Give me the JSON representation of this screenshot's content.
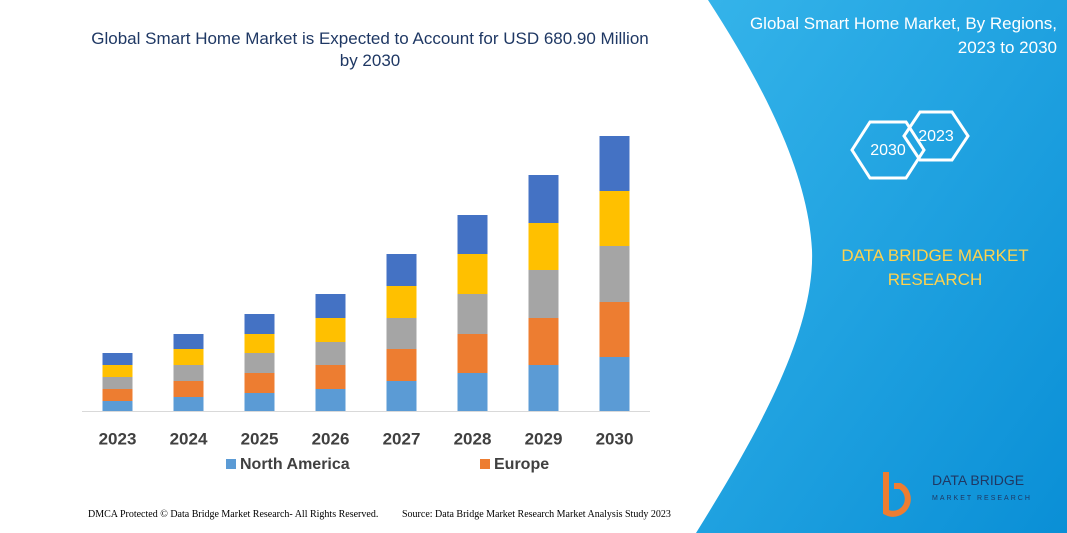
{
  "chart_data": {
    "type": "bar",
    "stacked": true,
    "title": "Global Smart Home Market is Expected to Account for USD 680.90 Million by 2030",
    "categories": [
      "2023",
      "2024",
      "2025",
      "2026",
      "2027",
      "2028",
      "2029",
      "2030"
    ],
    "series": [
      {
        "name": "North America",
        "color": "#5b9bd5",
        "values": [
          10,
          14,
          18,
          22,
          30,
          38,
          46,
          54
        ]
      },
      {
        "name": "Europe",
        "color": "#ed7d31",
        "values": [
          12,
          16,
          20,
          24,
          32,
          39,
          47,
          55
        ]
      },
      {
        "name": null,
        "color": "#a5a5a5",
        "values": [
          12,
          16,
          20,
          23,
          31,
          40,
          48,
          56
        ]
      },
      {
        "name": null,
        "color": "#ffc000",
        "values": [
          12,
          16,
          19,
          24,
          32,
          40,
          47,
          55
        ]
      },
      {
        "name": null,
        "color": "#4472c4",
        "values": [
          12,
          15,
          20,
          24,
          32,
          39,
          48,
          55
        ]
      }
    ],
    "ylim": [
      0,
      300
    ]
  },
  "panel": {
    "title": "Global Smart Home Market, By Regions, 2023 to 2030",
    "hexagons": [
      "2023",
      "2030"
    ],
    "brand": "DATA BRIDGE MARKET RESEARCH"
  },
  "logo": {
    "name": "DATA BRIDGE",
    "tagline": "MARKET RESEARCH"
  },
  "footer": {
    "left": "DMCA Protected © Data Bridge Market Research- All Rights Reserved.",
    "right": "Source: Data Bridge Market Research Market Analysis Study 2023"
  }
}
